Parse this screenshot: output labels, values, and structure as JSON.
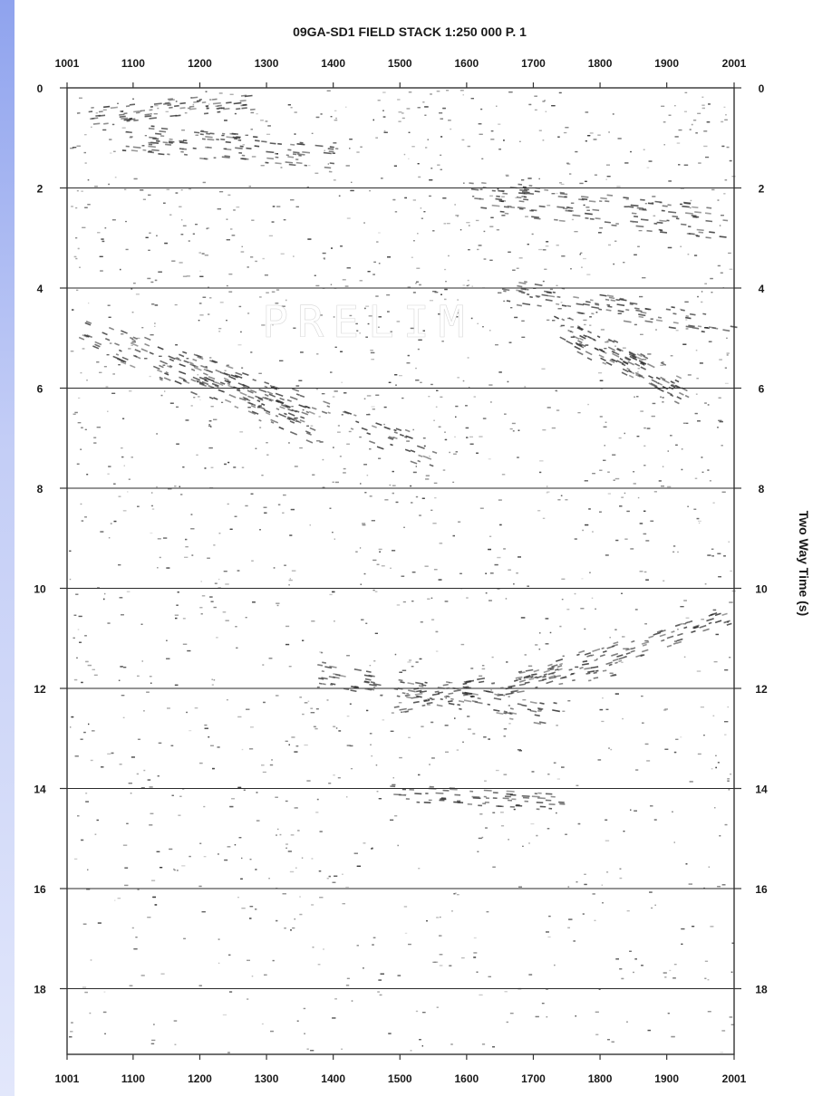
{
  "section": {
    "title": "09GA-SD1 FIELD STACK 1:250 000 P. 1",
    "stamp": "PRELIM",
    "cdp_ticks": [
      "1001",
      "1100",
      "1200",
      "1300",
      "1400",
      "1500",
      "1600",
      "1700",
      "1800",
      "1900",
      "2001"
    ],
    "time_ticks": [
      "0",
      "2",
      "4",
      "6",
      "8",
      "10",
      "12",
      "14",
      "16",
      "18"
    ],
    "right_axis_label": "Two Way Time (s)"
  }
}
